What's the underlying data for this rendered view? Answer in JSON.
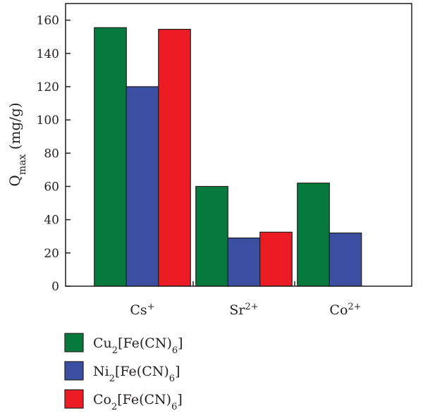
{
  "chart_data": {
    "type": "bar",
    "categories": [
      "Cs",
      "Sr",
      "Co"
    ],
    "category_superscripts": [
      "+",
      "2+",
      "2+"
    ],
    "ylabel": "Q",
    "ylabel_subscript": "max",
    "ylabel_unit": " (mg/g)",
    "ylim": [
      0,
      170
    ],
    "yticks": [
      0,
      20,
      40,
      60,
      80,
      100,
      120,
      140,
      160
    ],
    "legend_position": "bottom-left",
    "series": [
      {
        "name_parts": [
          "Cu",
          "2",
          "[Fe(CN)",
          "6",
          "]"
        ],
        "color": "#067a3d",
        "values": [
          155.5,
          60,
          62
        ]
      },
      {
        "name_parts": [
          "Ni",
          "2",
          "[Fe(CN)",
          "6",
          "]"
        ],
        "color": "#3a4fa2",
        "values": [
          120,
          29,
          32
        ]
      },
      {
        "name_parts": [
          "Co",
          "2",
          "[Fe(CN)",
          "6",
          "]"
        ],
        "color": "#ed1c24",
        "values": [
          154.5,
          32.5,
          null
        ]
      }
    ]
  }
}
